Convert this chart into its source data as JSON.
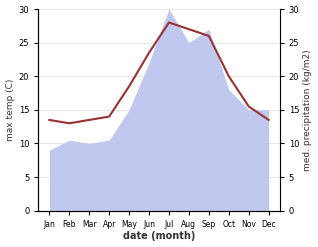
{
  "months": [
    "Jan",
    "Feb",
    "Mar",
    "Apr",
    "May",
    "Jun",
    "Jul",
    "Aug",
    "Sep",
    "Oct",
    "Nov",
    "Dec"
  ],
  "max_temp": [
    13.5,
    13.0,
    13.5,
    14.0,
    18.5,
    23.5,
    28.0,
    27.0,
    26.0,
    20.0,
    15.5,
    13.5
  ],
  "precipitation": [
    9.0,
    10.5,
    10.0,
    10.5,
    15.0,
    22.0,
    30.0,
    25.0,
    27.0,
    18.0,
    15.0,
    15.0
  ],
  "temp_color": "#993333",
  "precip_fill_color": "#c0c8f0",
  "precip_edge_color": "#a0aade",
  "ylim": [
    0,
    30
  ],
  "xlabel": "date (month)",
  "ylabel_left": "max temp (C)",
  "ylabel_right": "med. precipitation (kg/m2)",
  "yticks": [
    0,
    5,
    10,
    15,
    20,
    25,
    30
  ],
  "background_color": "#ffffff",
  "grid_color": "#dddddd"
}
